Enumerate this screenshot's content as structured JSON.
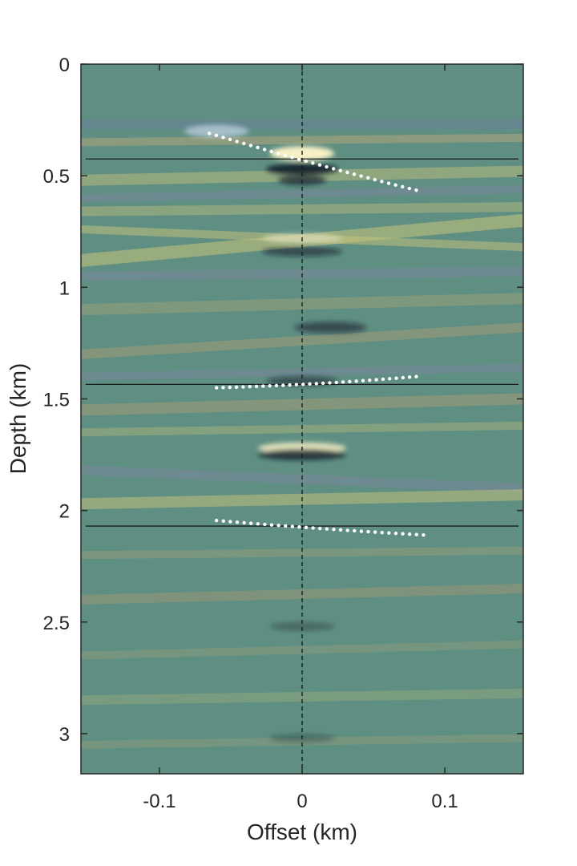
{
  "chart_data": {
    "type": "heatmap",
    "title": "",
    "xlabel": "Offset (km)",
    "ylabel": "Depth (km)",
    "xlim": [
      -0.155,
      0.155
    ],
    "ylim": [
      0,
      3.18
    ],
    "y_reversed": true,
    "x_ticks": [
      -0.1,
      0,
      0.1
    ],
    "x_tick_labels": [
      "-0.1",
      "0",
      "0.1"
    ],
    "y_ticks": [
      0,
      0.5,
      1,
      1.5,
      2,
      2.5,
      3
    ],
    "y_tick_labels": [
      "0",
      "0.5",
      "1",
      "1.5",
      "2",
      "2.5",
      "3"
    ],
    "grid": false,
    "colors": {
      "background": "#5f8f82",
      "axis": "#262626",
      "bright_event": "#fff5c8",
      "dark_event": "#111827",
      "yellow_band": "#c9c47a",
      "purple_band": "#8a82b0",
      "curve_dots": "#ffffff"
    },
    "zero_offset_line": {
      "x": 0,
      "style": "dashed"
    },
    "horizontal_lines": [
      0.425,
      1.435,
      2.07
    ],
    "dotted_curves": [
      {
        "x": [
          -0.065,
          0,
          0.08
        ],
        "y": [
          0.31,
          0.43,
          0.565
        ]
      },
      {
        "x": [
          -0.06,
          0,
          0.08
        ],
        "y": [
          1.45,
          1.435,
          1.4
        ]
      },
      {
        "x": [
          -0.06,
          0,
          0.085
        ],
        "y": [
          2.045,
          2.075,
          2.11
        ]
      }
    ]
  }
}
